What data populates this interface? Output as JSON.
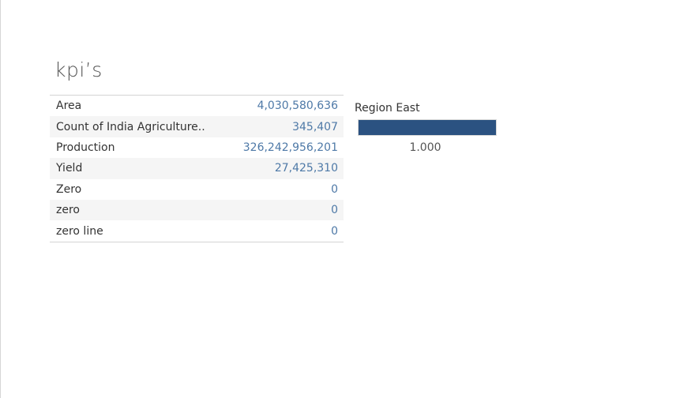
{
  "sheet": {
    "title": "kpi’s"
  },
  "kpi_table": {
    "rows": [
      {
        "label": "Area",
        "value": "4,030,580,636"
      },
      {
        "label": "Count of India Agriculture..",
        "value": "345,407"
      },
      {
        "label": "Production",
        "value": "326,242,956,201"
      },
      {
        "label": "Yield",
        "value": "27,425,310"
      },
      {
        "label": "Zero",
        "value": "0"
      },
      {
        "label": "zero",
        "value": "0"
      },
      {
        "label": "zero line",
        "value": "0"
      }
    ],
    "value_color": "#4e79a7"
  },
  "region_gauge": {
    "title": "Region East",
    "value_label": "1.000",
    "fill_fraction": 1.0,
    "bar_color": "#2b5281"
  }
}
